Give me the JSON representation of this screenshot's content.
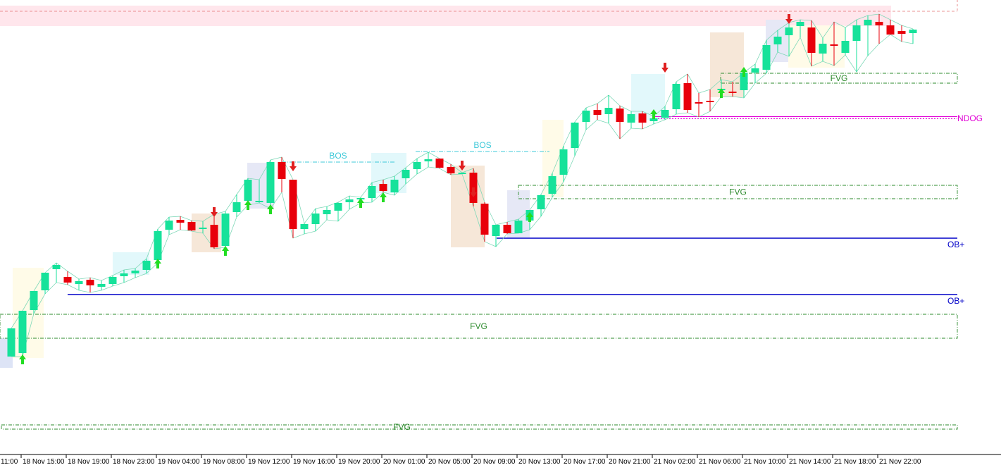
{
  "chart_data": {
    "type": "candlestick",
    "title": "",
    "colors": {
      "bull": "#16e29a",
      "bear": "#e8000b",
      "wick": "#333333",
      "fvg": "#2e8b2e",
      "ob": "#0000c8",
      "bos": "#3cc8d8",
      "ndog": "#e100d6",
      "arrow_up": "#22dd22",
      "arrow_down": "#e02020",
      "zone_top": "#ffe6ec"
    },
    "ylim": [
      0,
      653
    ],
    "x_tick_labels": [
      "11:00",
      "18 Nov 15:00",
      "18 Nov 19:00",
      "18 Nov 23:00",
      "19 Nov 04:00",
      "19 Nov 08:00",
      "19 Nov 12:00",
      "19 Nov 16:00",
      "19 Nov 20:00",
      "20 Nov 01:00",
      "20 Nov 05:00",
      "20 Nov 09:00",
      "20 Nov 13:00",
      "20 Nov 17:00",
      "20 Nov 21:00",
      "21 Nov 02:00",
      "21 Nov 06:00",
      "21 Nov 10:00",
      "21 Nov 14:00",
      "21 Nov 18:00",
      "21 Nov 22:00"
    ],
    "candles": [
      {
        "o": 147,
        "h": 187,
        "l": 147,
        "c": 187
      },
      {
        "o": 152,
        "h": 212,
        "l": 147,
        "c": 212
      },
      {
        "o": 213,
        "h": 240,
        "l": 208,
        "c": 240
      },
      {
        "o": 241,
        "h": 266,
        "l": 236,
        "c": 266
      },
      {
        "o": 271,
        "h": 280,
        "l": 252,
        "c": 277
      },
      {
        "o": 260,
        "h": 268,
        "l": 249,
        "c": 252
      },
      {
        "o": 250,
        "h": 257,
        "l": 241,
        "c": 254
      },
      {
        "o": 256,
        "h": 259,
        "l": 238,
        "c": 248
      },
      {
        "o": 246,
        "h": 255,
        "l": 241,
        "c": 250
      },
      {
        "o": 250,
        "h": 262,
        "l": 247,
        "c": 260
      },
      {
        "o": 261,
        "h": 270,
        "l": 252,
        "c": 265
      },
      {
        "o": 265,
        "h": 272,
        "l": 259,
        "c": 269
      },
      {
        "o": 270,
        "h": 286,
        "l": 265,
        "c": 283
      },
      {
        "o": 284,
        "h": 328,
        "l": 280,
        "c": 325
      },
      {
        "o": 327,
        "h": 345,
        "l": 320,
        "c": 340
      },
      {
        "o": 341,
        "h": 346,
        "l": 327,
        "c": 337
      },
      {
        "o": 338,
        "h": 340,
        "l": 325,
        "c": 326
      },
      {
        "o": 329,
        "h": 339,
        "l": 322,
        "c": 330
      },
      {
        "o": 334,
        "h": 349,
        "l": 300,
        "c": 302
      },
      {
        "o": 304,
        "h": 353,
        "l": 302,
        "c": 350
      },
      {
        "o": 352,
        "h": 377,
        "l": 345,
        "c": 366
      },
      {
        "o": 368,
        "h": 400,
        "l": 362,
        "c": 398
      },
      {
        "o": 367,
        "h": 398,
        "l": 365,
        "c": 368
      },
      {
        "o": 365,
        "h": 426,
        "l": 357,
        "c": 423
      },
      {
        "o": 423,
        "h": 430,
        "l": 380,
        "c": 399
      },
      {
        "o": 398,
        "h": 398,
        "l": 315,
        "c": 328
      },
      {
        "o": 328,
        "h": 336,
        "l": 321,
        "c": 335
      },
      {
        "o": 335,
        "h": 357,
        "l": 325,
        "c": 350
      },
      {
        "o": 349,
        "h": 360,
        "l": 341,
        "c": 355
      },
      {
        "o": 354,
        "h": 366,
        "l": 339,
        "c": 365
      },
      {
        "o": 366,
        "h": 375,
        "l": 356,
        "c": 370
      },
      {
        "o": 370,
        "h": 373,
        "l": 365,
        "c": 372
      },
      {
        "o": 372,
        "h": 394,
        "l": 366,
        "c": 389
      },
      {
        "o": 392,
        "h": 398,
        "l": 380,
        "c": 382
      },
      {
        "o": 380,
        "h": 403,
        "l": 376,
        "c": 398
      },
      {
        "o": 400,
        "h": 415,
        "l": 392,
        "c": 412
      },
      {
        "o": 413,
        "h": 428,
        "l": 406,
        "c": 423
      },
      {
        "o": 424,
        "h": 437,
        "l": 416,
        "c": 427
      },
      {
        "o": 428,
        "h": 428,
        "l": 414,
        "c": 415
      },
      {
        "o": 416,
        "h": 420,
        "l": 405,
        "c": 407
      },
      {
        "o": 408,
        "h": 408,
        "l": 406,
        "c": 408
      },
      {
        "o": 408,
        "h": 414,
        "l": 360,
        "c": 365
      },
      {
        "o": 364,
        "h": 366,
        "l": 310,
        "c": 320
      },
      {
        "o": 318,
        "h": 334,
        "l": 303,
        "c": 334
      },
      {
        "o": 334,
        "h": 338,
        "l": 321,
        "c": 322
      },
      {
        "o": 322,
        "h": 342,
        "l": 322,
        "c": 340
      },
      {
        "o": 340,
        "h": 355,
        "l": 327,
        "c": 355
      },
      {
        "o": 356,
        "h": 377,
        "l": 346,
        "c": 376
      },
      {
        "o": 378,
        "h": 407,
        "l": 373,
        "c": 403
      },
      {
        "o": 405,
        "h": 446,
        "l": 395,
        "c": 441
      },
      {
        "o": 443,
        "h": 480,
        "l": 432,
        "c": 479
      },
      {
        "o": 480,
        "h": 500,
        "l": 469,
        "c": 496
      },
      {
        "o": 497,
        "h": 506,
        "l": 483,
        "c": 490
      },
      {
        "o": 491,
        "h": 518,
        "l": 478,
        "c": 500
      },
      {
        "o": 499,
        "h": 503,
        "l": 456,
        "c": 480
      },
      {
        "o": 479,
        "h": 495,
        "l": 471,
        "c": 491
      },
      {
        "o": 492,
        "h": 495,
        "l": 470,
        "c": 479
      },
      {
        "o": 481,
        "h": 488,
        "l": 477,
        "c": 485
      },
      {
        "o": 486,
        "h": 502,
        "l": 483,
        "c": 497
      },
      {
        "o": 498,
        "h": 537,
        "l": 491,
        "c": 534
      },
      {
        "o": 535,
        "h": 548,
        "l": 493,
        "c": 497
      },
      {
        "o": 508,
        "h": 521,
        "l": 487,
        "c": 507
      },
      {
        "o": 510,
        "h": 526,
        "l": 495,
        "c": 508
      },
      {
        "o": 526,
        "h": 540,
        "l": 516,
        "c": 527
      },
      {
        "o": 523,
        "h": 537,
        "l": 516,
        "c": 521
      },
      {
        "o": 525,
        "h": 550,
        "l": 514,
        "c": 550
      },
      {
        "o": 550,
        "h": 562,
        "l": 535,
        "c": 556
      },
      {
        "o": 554,
        "h": 596,
        "l": 549,
        "c": 589
      },
      {
        "o": 590,
        "h": 610,
        "l": 579,
        "c": 601
      },
      {
        "o": 603,
        "h": 621,
        "l": 573,
        "c": 614
      },
      {
        "o": 616,
        "h": 625,
        "l": 600,
        "c": 622
      },
      {
        "o": 614,
        "h": 624,
        "l": 559,
        "c": 578
      },
      {
        "o": 577,
        "h": 599,
        "l": 566,
        "c": 591
      },
      {
        "o": 590,
        "h": 622,
        "l": 560,
        "c": 589
      },
      {
        "o": 578,
        "h": 614,
        "l": 575,
        "c": 595
      },
      {
        "o": 595,
        "h": 625,
        "l": 551,
        "c": 617
      },
      {
        "o": 617,
        "h": 631,
        "l": 574,
        "c": 625
      },
      {
        "o": 622,
        "h": 633,
        "l": 591,
        "c": 617
      },
      {
        "o": 617,
        "h": 625,
        "l": 604,
        "c": 604
      },
      {
        "o": 609,
        "h": 617,
        "l": 594,
        "c": 605
      },
      {
        "o": 606,
        "h": 612,
        "l": 591,
        "c": 611
      }
    ],
    "fvg_zones": [
      {
        "label": "FVG",
        "top": 207,
        "bottom": 173,
        "from": 0,
        "to": 1359
      },
      {
        "label": "FVG",
        "top": 390,
        "bottom": 371,
        "from": 736,
        "to": 1359
      },
      {
        "label": "FVG",
        "top": 549,
        "bottom": 535,
        "from": 1023,
        "to": 1359
      },
      {
        "label": "FVG",
        "top": 50,
        "bottom": 44,
        "from": 2,
        "to": 1359
      }
    ],
    "order_blocks": [
      {
        "label": "OB+",
        "price": 235,
        "from": 96,
        "to": 1359
      },
      {
        "label": "OB+",
        "price": 315,
        "from": 705,
        "to": 1359
      }
    ],
    "bos": [
      {
        "label": "BOS",
        "price": 423,
        "from": 400,
        "to": 560
      },
      {
        "label": "BOS",
        "price": 438,
        "from": 590,
        "to": 780
      }
    ],
    "ndog": {
      "label": "NDOG",
      "price": 486,
      "from": 930,
      "to": 1359
    }
  }
}
